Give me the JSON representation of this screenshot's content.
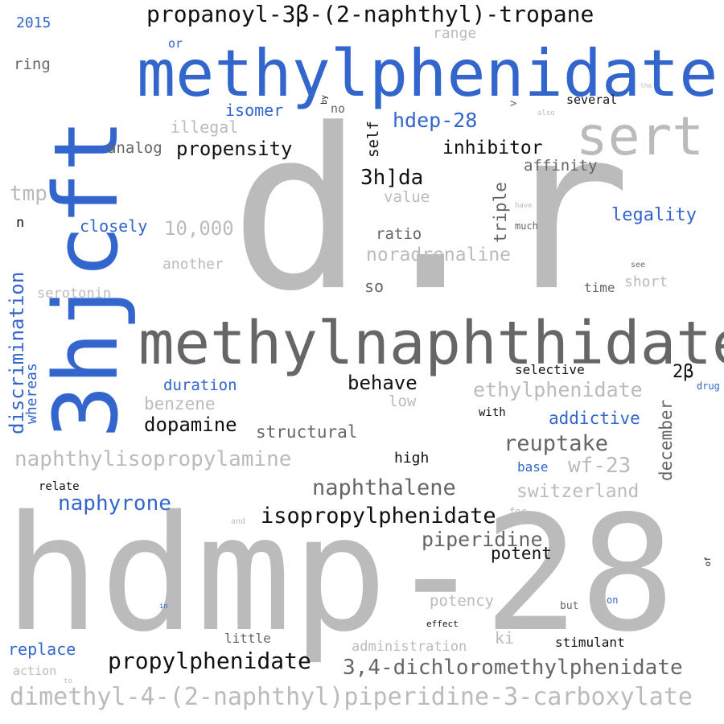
{
  "colors": {
    "blue": "#3366cc",
    "light_gray": "#bbbbbb",
    "dark_gray": "#666666",
    "black": "#111111"
  },
  "words": {
    "hdmp28": "hdmp-28",
    "dr": "d.r",
    "threehjcft": "3hjcft",
    "methylphenidate": "methylphenidate",
    "methylnaphthidate": "methylnaphthidate",
    "tropane": "propanoyl-3β-(2-naphthyl)-tropane",
    "sert": "sert",
    "dimethyl": "dimethyl-4-(2-naphthyl)piperidine-3-carboxylate",
    "naphthylisopropylamine": "naphthylisopropylamine",
    "isopropylphenidate": "isopropylphenidate",
    "propylphenidate": "propylphenidate",
    "dichloro": "3,4-dichloromethylphenidate",
    "naphthalene": "naphthalene",
    "naphyrone": "naphyrone",
    "ethylphenidate": "ethylphenidate",
    "reuptake": "reuptake",
    "piperidine": "piperidine",
    "wf23": "wf-23",
    "switzerland": "switzerland",
    "noradrenaline": "noradrenaline",
    "propensity": "propensity",
    "inhibitor": "inhibitor",
    "hdep28": "hdep-28",
    "threehda": "3h]da",
    "discrimination": "discrimination",
    "whereas": "whereas",
    "dopamine": "dopamine",
    "behave": "behave",
    "addictive": "addictive",
    "legality": "legality",
    "december": "december",
    "triple": "triple",
    "potent": "potent",
    "isomer": "isomer",
    "illegal": "illegal",
    "analog": "analog",
    "tmp": "tmp",
    "closely": "closely",
    "tenk": "10,000",
    "another": "another",
    "serotonin": "serotonin",
    "ratio": "ratio",
    "value": "value",
    "affinity": "affinity",
    "so": "so",
    "self": "self",
    "duration": "duration",
    "benzene": "benzene",
    "structural": "structural",
    "low": "low",
    "high": "high",
    "selective": "selective",
    "twobeta": "2β",
    "short": "short",
    "time": "time",
    "with": "with",
    "base": "base",
    "potency": "potency",
    "ki": "ki",
    "stimulant": "stimulant",
    "administration": "administration",
    "little": "little",
    "replace": "replace",
    "action": "action",
    "relate": "relate",
    "effect": "effect",
    "but": "but",
    "on": "on",
    "for": "for",
    "and": "and",
    "in": "in",
    "it": "it",
    "to": "to",
    "of": "of",
    "year": "2015",
    "ring": "ring",
    "or": "or",
    "range": "range",
    "several": "several",
    "no": "no",
    "by": "by",
    "gt": ">",
    "also": "also",
    "the": "the",
    "n": "n",
    "have": "have",
    "much": "much",
    "see": "see",
    "drug": "drug"
  }
}
